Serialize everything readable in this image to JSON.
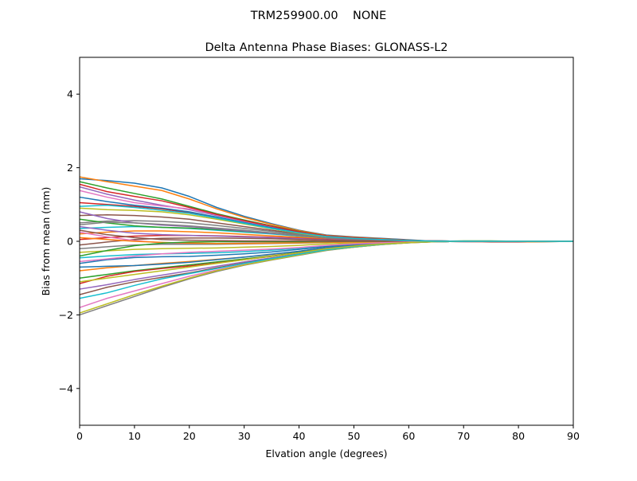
{
  "figure": {
    "suptitle": "TRM259900.00    NONE"
  },
  "chart_data": {
    "type": "line",
    "title": "Delta Antenna Phase Biases: GLONASS-L2",
    "xlabel": "Elvation angle (degrees)",
    "ylabel": "Bias from mean (mm)",
    "xlim": [
      0,
      90
    ],
    "ylim": [
      -5,
      5
    ],
    "xticks": [
      "0",
      "10",
      "20",
      "30",
      "40",
      "50",
      "60",
      "70",
      "80",
      "90"
    ],
    "yticks": [
      "−4",
      "−2",
      "0",
      "2",
      "4"
    ],
    "grid": false,
    "legend": "none",
    "x": [
      0,
      5,
      10,
      15,
      20,
      25,
      30,
      35,
      40,
      45,
      50,
      55,
      60,
      65,
      70,
      75,
      80,
      85,
      90
    ],
    "palette": [
      "#1f77b4",
      "#ff7f0e",
      "#2ca02c",
      "#d62728",
      "#9467bd",
      "#8c564b",
      "#e377c2",
      "#7f7f7f",
      "#bcbd22",
      "#17becf"
    ],
    "series": [
      {
        "values": [
          1.7,
          1.65,
          1.58,
          1.45,
          1.22,
          0.92,
          0.68,
          0.48,
          0.3,
          0.17,
          0.12,
          0.08,
          0.04,
          0.0,
          -0.01,
          -0.02,
          -0.02,
          -0.01,
          0.0
        ]
      },
      {
        "values": [
          1.75,
          1.62,
          1.5,
          1.38,
          1.15,
          0.88,
          0.65,
          0.46,
          0.29,
          0.16,
          0.11,
          0.07,
          0.03,
          0.0,
          -0.01,
          -0.02,
          -0.02,
          -0.01,
          0.0
        ]
      },
      {
        "values": [
          1.62,
          1.45,
          1.3,
          1.15,
          0.95,
          0.75,
          0.58,
          0.42,
          0.27,
          0.15,
          0.1,
          0.06,
          0.03,
          0.0,
          0.01,
          0.01,
          0.0,
          0.0,
          0.0
        ]
      },
      {
        "values": [
          1.05,
          1.0,
          0.95,
          0.88,
          0.78,
          0.64,
          0.5,
          0.36,
          0.24,
          0.13,
          0.09,
          0.05,
          0.02,
          0.0,
          0.0,
          -0.01,
          -0.01,
          0.0,
          0.0
        ]
      },
      {
        "values": [
          1.48,
          1.28,
          1.12,
          0.98,
          0.86,
          0.7,
          0.54,
          0.39,
          0.25,
          0.14,
          0.09,
          0.05,
          0.02,
          0.0,
          0.0,
          0.0,
          0.0,
          0.0,
          0.0
        ]
      },
      {
        "values": [
          0.7,
          0.72,
          0.7,
          0.66,
          0.6,
          0.5,
          0.4,
          0.3,
          0.2,
          0.11,
          0.07,
          0.04,
          0.02,
          0.01,
          0.0,
          0.0,
          0.0,
          0.0,
          0.0
        ]
      },
      {
        "values": [
          1.38,
          1.2,
          1.05,
          0.96,
          0.88,
          0.72,
          0.55,
          0.4,
          0.26,
          0.14,
          0.09,
          0.05,
          0.02,
          0.0,
          -0.01,
          -0.01,
          -0.01,
          0.0,
          0.0
        ]
      },
      {
        "values": [
          0.5,
          0.55,
          0.56,
          0.54,
          0.5,
          0.43,
          0.35,
          0.27,
          0.18,
          0.1,
          0.06,
          0.04,
          0.02,
          0.01,
          0.0,
          0.0,
          0.0,
          0.0,
          0.0
        ]
      },
      {
        "values": [
          0.9,
          0.86,
          0.84,
          0.8,
          0.72,
          0.6,
          0.47,
          0.34,
          0.22,
          0.12,
          0.08,
          0.05,
          0.02,
          0.0,
          0.0,
          0.0,
          0.0,
          0.0,
          0.0
        ]
      },
      {
        "values": [
          0.35,
          0.38,
          0.4,
          0.38,
          0.35,
          0.3,
          0.25,
          0.2,
          0.14,
          0.08,
          0.05,
          0.03,
          0.01,
          0.0,
          0.0,
          0.0,
          0.0,
          0.0,
          0.0
        ]
      },
      {
        "values": [
          1.2,
          1.08,
          0.98,
          0.9,
          0.8,
          0.66,
          0.51,
          0.37,
          0.24,
          0.13,
          0.09,
          0.05,
          0.02,
          0.0,
          0.0,
          0.0,
          0.0,
          0.0,
          0.0
        ]
      },
      {
        "values": [
          0.2,
          0.25,
          0.28,
          0.28,
          0.26,
          0.23,
          0.19,
          0.15,
          0.11,
          0.07,
          0.04,
          0.03,
          0.01,
          0.0,
          0.0,
          0.0,
          0.0,
          0.0,
          0.0
        ]
      },
      {
        "values": [
          0.6,
          0.5,
          0.42,
          0.38,
          0.36,
          0.32,
          0.27,
          0.22,
          0.16,
          0.09,
          0.06,
          0.04,
          0.02,
          0.01,
          0.0,
          0.0,
          0.0,
          0.0,
          0.0
        ]
      },
      {
        "values": [
          0.05,
          0.1,
          0.14,
          0.16,
          0.16,
          0.15,
          0.13,
          0.11,
          0.08,
          0.05,
          0.03,
          0.02,
          0.01,
          0.0,
          0.0,
          0.0,
          0.0,
          0.0,
          0.0
        ]
      },
      {
        "values": [
          0.4,
          0.3,
          0.22,
          0.18,
          0.16,
          0.14,
          0.12,
          0.1,
          0.07,
          0.04,
          0.03,
          0.02,
          0.01,
          0.0,
          0.0,
          0.0,
          0.0,
          0.0,
          0.0
        ]
      },
      {
        "values": [
          -0.1,
          -0.02,
          0.05,
          0.08,
          0.09,
          0.09,
          0.08,
          0.07,
          0.05,
          0.03,
          0.02,
          0.01,
          0.0,
          0.0,
          0.0,
          0.0,
          0.0,
          0.0,
          0.0
        ]
      },
      {
        "values": [
          0.25,
          0.12,
          0.02,
          -0.04,
          -0.06,
          -0.06,
          -0.05,
          -0.04,
          -0.03,
          -0.02,
          -0.01,
          0.0,
          0.0,
          0.0,
          0.0,
          0.0,
          0.0,
          0.0,
          0.0
        ]
      },
      {
        "values": [
          -0.2,
          -0.15,
          -0.1,
          -0.08,
          -0.08,
          -0.08,
          -0.07,
          -0.06,
          -0.05,
          -0.03,
          -0.02,
          -0.01,
          0.0,
          0.0,
          0.0,
          0.0,
          0.0,
          0.0,
          0.0
        ]
      },
      {
        "values": [
          -0.3,
          -0.26,
          -0.22,
          -0.2,
          -0.19,
          -0.18,
          -0.16,
          -0.14,
          -0.11,
          -0.07,
          -0.05,
          -0.03,
          -0.01,
          0.0,
          0.0,
          0.0,
          0.0,
          0.0,
          0.0
        ]
      },
      {
        "values": [
          -0.45,
          -0.4,
          -0.36,
          -0.34,
          -0.33,
          -0.31,
          -0.28,
          -0.24,
          -0.19,
          -0.12,
          -0.08,
          -0.05,
          -0.02,
          -0.01,
          0.0,
          0.0,
          0.0,
          0.0,
          0.0
        ]
      },
      {
        "values": [
          -0.6,
          -0.5,
          -0.44,
          -0.42,
          -0.41,
          -0.38,
          -0.34,
          -0.29,
          -0.22,
          -0.14,
          -0.09,
          -0.05,
          -0.02,
          -0.01,
          0.0,
          0.0,
          0.0,
          0.0,
          0.0
        ]
      },
      {
        "values": [
          -0.8,
          -0.72,
          -0.66,
          -0.6,
          -0.55,
          -0.49,
          -0.43,
          -0.36,
          -0.27,
          -0.17,
          -0.11,
          -0.06,
          -0.03,
          -0.01,
          0.0,
          0.0,
          0.0,
          0.0,
          0.0
        ]
      },
      {
        "values": [
          -1.0,
          -0.9,
          -0.8,
          -0.72,
          -0.64,
          -0.56,
          -0.48,
          -0.4,
          -0.3,
          -0.19,
          -0.12,
          -0.07,
          -0.03,
          -0.01,
          0.0,
          0.0,
          0.0,
          0.0,
          0.0
        ]
      },
      {
        "values": [
          -1.15,
          -0.95,
          -0.82,
          -0.74,
          -0.67,
          -0.59,
          -0.5,
          -0.41,
          -0.31,
          -0.2,
          -0.13,
          -0.07,
          -0.03,
          -0.01,
          0.0,
          0.0,
          0.0,
          0.0,
          0.0
        ]
      },
      {
        "values": [
          -1.3,
          -1.18,
          -1.04,
          -0.92,
          -0.8,
          -0.68,
          -0.56,
          -0.45,
          -0.34,
          -0.22,
          -0.14,
          -0.08,
          -0.03,
          -0.01,
          0.0,
          0.0,
          0.0,
          0.0,
          0.0
        ]
      },
      {
        "values": [
          -1.45,
          -1.25,
          -1.1,
          -0.98,
          -0.86,
          -0.72,
          -0.59,
          -0.47,
          -0.35,
          -0.23,
          -0.15,
          -0.08,
          -0.03,
          -0.01,
          0.0,
          0.0,
          0.0,
          0.0,
          0.0
        ]
      },
      {
        "values": [
          -1.8,
          -1.55,
          -1.35,
          -1.15,
          -0.95,
          -0.78,
          -0.63,
          -0.5,
          -0.37,
          -0.24,
          -0.16,
          -0.09,
          -0.04,
          -0.01,
          0.0,
          0.0,
          0.0,
          0.0,
          0.0
        ]
      },
      {
        "values": [
          -2.0,
          -1.75,
          -1.5,
          -1.25,
          -1.02,
          -0.82,
          -0.65,
          -0.51,
          -0.38,
          -0.25,
          -0.16,
          -0.09,
          -0.04,
          -0.01,
          0.0,
          0.0,
          0.0,
          0.0,
          0.0
        ]
      },
      {
        "values": [
          -1.95,
          -1.7,
          -1.45,
          -1.22,
          -1.0,
          -0.8,
          -0.64,
          -0.5,
          -0.37,
          -0.24,
          -0.16,
          -0.09,
          -0.04,
          -0.01,
          0.0,
          0.0,
          0.0,
          0.0,
          0.0
        ]
      },
      {
        "values": [
          -1.55,
          -1.4,
          -1.2,
          -1.02,
          -0.88,
          -0.74,
          -0.6,
          -0.47,
          -0.35,
          -0.23,
          -0.15,
          -0.08,
          -0.03,
          -0.01,
          0.0,
          0.0,
          0.0,
          0.0,
          0.0
        ]
      },
      {
        "values": [
          -0.7,
          -0.68,
          -0.66,
          -0.62,
          -0.57,
          -0.5,
          -0.43,
          -0.35,
          -0.27,
          -0.17,
          -0.11,
          -0.06,
          -0.03,
          -0.01,
          0.0,
          0.0,
          0.0,
          0.0,
          0.0
        ]
      },
      {
        "values": [
          0.1,
          0.05,
          0.0,
          -0.03,
          -0.05,
          -0.06,
          -0.06,
          -0.05,
          -0.04,
          -0.03,
          -0.02,
          -0.01,
          0.0,
          0.0,
          0.0,
          0.0,
          0.0,
          0.0,
          0.0
        ]
      },
      {
        "values": [
          -0.4,
          -0.25,
          -0.12,
          -0.05,
          -0.02,
          -0.01,
          -0.01,
          -0.01,
          -0.01,
          -0.01,
          0.0,
          0.0,
          0.0,
          0.0,
          0.0,
          0.0,
          0.0,
          0.0,
          0.0
        ]
      },
      {
        "values": [
          1.55,
          1.35,
          1.22,
          1.1,
          0.92,
          0.73,
          0.56,
          0.41,
          0.26,
          0.15,
          0.1,
          0.06,
          0.03,
          0.0,
          0.0,
          0.0,
          0.0,
          0.0,
          0.0
        ]
      },
      {
        "values": [
          0.8,
          0.62,
          0.5,
          0.44,
          0.4,
          0.34,
          0.28,
          0.22,
          0.16,
          0.09,
          0.06,
          0.04,
          0.02,
          0.01,
          0.0,
          0.0,
          0.0,
          0.0,
          0.0
        ]
      },
      {
        "values": [
          0.3,
          0.18,
          0.1,
          0.05,
          0.03,
          0.02,
          0.01,
          0.01,
          0.01,
          0.0,
          0.0,
          0.0,
          0.0,
          0.0,
          0.0,
          0.0,
          0.0,
          0.0,
          0.0
        ]
      },
      {
        "values": [
          -0.55,
          -0.48,
          -0.4,
          -0.34,
          -0.3,
          -0.27,
          -0.24,
          -0.21,
          -0.17,
          -0.11,
          -0.07,
          -0.04,
          -0.02,
          -0.01,
          0.0,
          0.0,
          0.0,
          0.0,
          0.0
        ]
      },
      {
        "values": [
          0.45,
          0.52,
          0.5,
          0.46,
          0.42,
          0.36,
          0.3,
          0.23,
          0.16,
          0.09,
          0.06,
          0.04,
          0.02,
          0.01,
          0.0,
          0.0,
          0.0,
          0.0,
          0.0
        ]
      },
      {
        "values": [
          -1.1,
          -1.0,
          -0.9,
          -0.8,
          -0.7,
          -0.6,
          -0.5,
          -0.41,
          -0.31,
          -0.2,
          -0.13,
          -0.07,
          -0.03,
          -0.01,
          0.0,
          0.0,
          0.0,
          0.0,
          0.0
        ]
      },
      {
        "values": [
          0.95,
          0.98,
          0.92,
          0.84,
          0.76,
          0.63,
          0.49,
          0.35,
          0.23,
          0.13,
          0.08,
          0.05,
          0.02,
          0.0,
          0.0,
          0.0,
          0.0,
          0.0,
          0.0
        ]
      }
    ]
  }
}
